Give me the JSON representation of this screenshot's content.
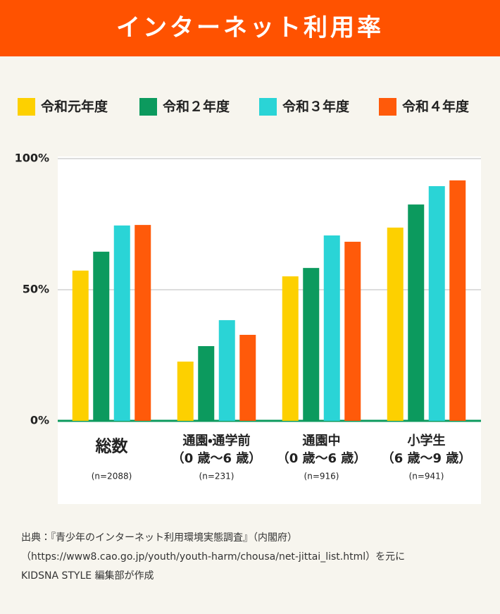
{
  "chart_data": {
    "type": "bar",
    "title": "インターネット利用率",
    "categories": [
      "総数",
      "通園・通学前",
      "通園中",
      "小学生"
    ],
    "category_ages": [
      null,
      "（0 歳〜6 歳）",
      "（0 歳〜6 歳）",
      "（6 歳〜9 歳）"
    ],
    "category_sizes": [
      "(n=2088)",
      "(n=231)",
      "(n=916)",
      "(n=941)"
    ],
    "series": [
      {
        "name": "令和元年度",
        "color": "#fdd000",
        "values": [
          57.3,
          22.6,
          55.1,
          73.7
        ]
      },
      {
        "name": "令和２年度",
        "color": "#0c9a5e",
        "values": [
          64.5,
          28.5,
          58.3,
          82.5
        ]
      },
      {
        "name": "令和３年度",
        "color": "#2ad4d6",
        "values": [
          74.5,
          38.4,
          70.7,
          89.5
        ]
      },
      {
        "name": "令和４年度",
        "color": "#ff5a0a",
        "values": [
          74.7,
          32.8,
          68.3,
          91.7
        ]
      }
    ],
    "ylim": [
      0,
      100
    ],
    "yticks": [
      {
        "value": 0,
        "label": "0%"
      },
      {
        "value": 50,
        "label": "50%"
      },
      {
        "value": 100,
        "label": "100%"
      }
    ],
    "grid": true,
    "legend": "top",
    "source": [
      "出典：『青少年のインターネット利用環境実態調査』（内閣府）",
      "（https://www8.cao.go.jp/youth/youth-harm/chousa/net-jittai_list.html）を元に",
      "KIDSNA STYLE 編集部が作成"
    ]
  }
}
